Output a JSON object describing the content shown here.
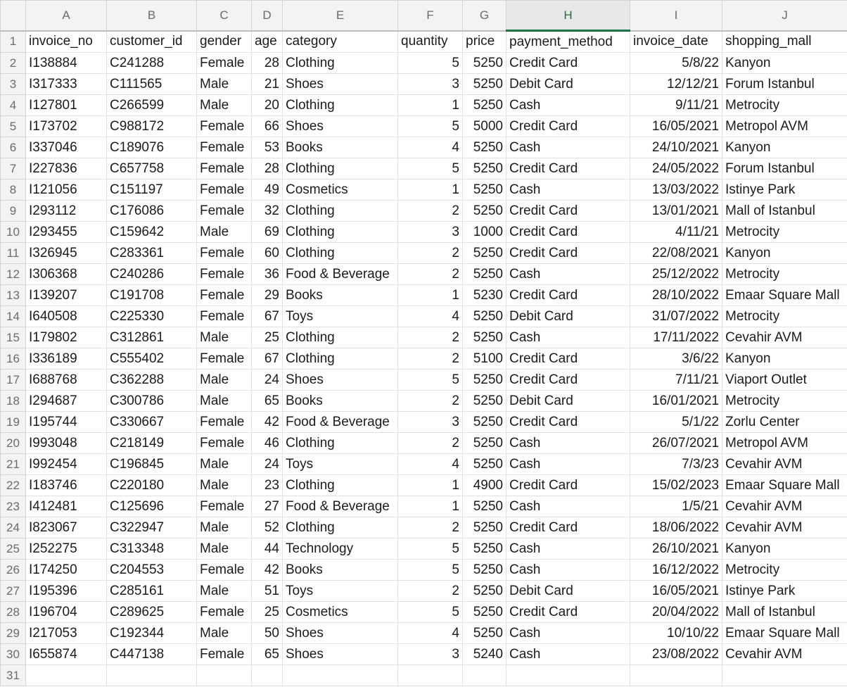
{
  "sheet": {
    "selected_column": "H",
    "column_headers": [
      "A",
      "B",
      "C",
      "D",
      "E",
      "F",
      "G",
      "H",
      "I",
      "J"
    ],
    "row_count": 31,
    "header_row": [
      "invoice_no",
      "customer_id",
      "gender",
      "age",
      "category",
      "quantity",
      "price",
      "payment_method",
      "invoice_date",
      "shopping_mall"
    ],
    "rows": [
      [
        "I138884",
        "C241288",
        "Female",
        "28",
        "Clothing",
        "5",
        "5250",
        "Credit Card",
        "5/8/22",
        "Kanyon"
      ],
      [
        "I317333",
        "C111565",
        "Male",
        "21",
        "Shoes",
        "3",
        "5250",
        "Debit Card",
        "12/12/21",
        "Forum Istanbul"
      ],
      [
        "I127801",
        "C266599",
        "Male",
        "20",
        "Clothing",
        "1",
        "5250",
        "Cash",
        "9/11/21",
        "Metrocity"
      ],
      [
        "I173702",
        "C988172",
        "Female",
        "66",
        "Shoes",
        "5",
        "5000",
        "Credit Card",
        "16/05/2021",
        "Metropol AVM"
      ],
      [
        "I337046",
        "C189076",
        "Female",
        "53",
        "Books",
        "4",
        "5250",
        "Cash",
        "24/10/2021",
        "Kanyon"
      ],
      [
        "I227836",
        "C657758",
        "Female",
        "28",
        "Clothing",
        "5",
        "5250",
        "Credit Card",
        "24/05/2022",
        "Forum Istanbul"
      ],
      [
        "I121056",
        "C151197",
        "Female",
        "49",
        "Cosmetics",
        "1",
        "5250",
        "Cash",
        "13/03/2022",
        "Istinye Park"
      ],
      [
        "I293112",
        "C176086",
        "Female",
        "32",
        "Clothing",
        "2",
        "5250",
        "Credit Card",
        "13/01/2021",
        "Mall of Istanbul"
      ],
      [
        "I293455",
        "C159642",
        "Male",
        "69",
        "Clothing",
        "3",
        "1000",
        "Credit Card",
        "4/11/21",
        "Metrocity"
      ],
      [
        "I326945",
        "C283361",
        "Female",
        "60",
        "Clothing",
        "2",
        "5250",
        "Credit Card",
        "22/08/2021",
        "Kanyon"
      ],
      [
        "I306368",
        "C240286",
        "Female",
        "36",
        "Food & Beverage",
        "2",
        "5250",
        "Cash",
        "25/12/2022",
        "Metrocity"
      ],
      [
        "I139207",
        "C191708",
        "Female",
        "29",
        "Books",
        "1",
        "5230",
        "Credit Card",
        "28/10/2022",
        "Emaar Square Mall"
      ],
      [
        "I640508",
        "C225330",
        "Female",
        "67",
        "Toys",
        "4",
        "5250",
        "Debit Card",
        "31/07/2022",
        "Metrocity"
      ],
      [
        "I179802",
        "C312861",
        "Male",
        "25",
        "Clothing",
        "2",
        "5250",
        "Cash",
        "17/11/2022",
        "Cevahir AVM"
      ],
      [
        "I336189",
        "C555402",
        "Female",
        "67",
        "Clothing",
        "2",
        "5100",
        "Credit Card",
        "3/6/22",
        "Kanyon"
      ],
      [
        "I688768",
        "C362288",
        "Male",
        "24",
        "Shoes",
        "5",
        "5250",
        "Credit Card",
        "7/11/21",
        "Viaport Outlet"
      ],
      [
        "I294687",
        "C300786",
        "Male",
        "65",
        "Books",
        "2",
        "5250",
        "Debit Card",
        "16/01/2021",
        "Metrocity"
      ],
      [
        "I195744",
        "C330667",
        "Female",
        "42",
        "Food & Beverage",
        "3",
        "5250",
        "Credit Card",
        "5/1/22",
        "Zorlu Center"
      ],
      [
        "I993048",
        "C218149",
        "Female",
        "46",
        "Clothing",
        "2",
        "5250",
        "Cash",
        "26/07/2021",
        "Metropol AVM"
      ],
      [
        "I992454",
        "C196845",
        "Male",
        "24",
        "Toys",
        "4",
        "5250",
        "Cash",
        "7/3/23",
        "Cevahir AVM"
      ],
      [
        "I183746",
        "C220180",
        "Male",
        "23",
        "Clothing",
        "1",
        "4900",
        "Credit Card",
        "15/02/2023",
        "Emaar Square Mall"
      ],
      [
        "I412481",
        "C125696",
        "Female",
        "27",
        "Food & Beverage",
        "1",
        "5250",
        "Cash",
        "1/5/21",
        "Cevahir AVM"
      ],
      [
        "I823067",
        "C322947",
        "Male",
        "52",
        "Clothing",
        "2",
        "5250",
        "Credit Card",
        "18/06/2022",
        "Cevahir AVM"
      ],
      [
        "I252275",
        "C313348",
        "Male",
        "44",
        "Technology",
        "5",
        "5250",
        "Cash",
        "26/10/2021",
        "Kanyon"
      ],
      [
        "I174250",
        "C204553",
        "Female",
        "42",
        "Books",
        "5",
        "5250",
        "Cash",
        "16/12/2022",
        "Metrocity"
      ],
      [
        "I195396",
        "C285161",
        "Male",
        "51",
        "Toys",
        "2",
        "5250",
        "Debit Card",
        "16/05/2021",
        "Istinye Park"
      ],
      [
        "I196704",
        "C289625",
        "Female",
        "25",
        "Cosmetics",
        "5",
        "5250",
        "Credit Card",
        "20/04/2022",
        "Mall of Istanbul"
      ],
      [
        "I217053",
        "C192344",
        "Male",
        "50",
        "Shoes",
        "4",
        "5250",
        "Cash",
        "10/10/22",
        "Emaar Square Mall"
      ],
      [
        "I655874",
        "C447138",
        "Female",
        "65",
        "Shoes",
        "3",
        "5240",
        "Cash",
        "23/08/2022",
        "Cevahir AVM"
      ]
    ]
  }
}
